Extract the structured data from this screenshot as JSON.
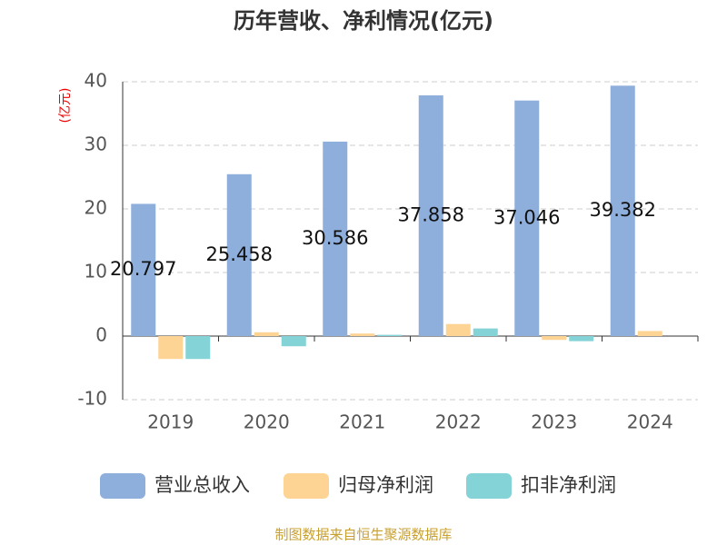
{
  "chart_data": {
    "type": "bar",
    "title": "历年营收、净利情况(亿元)",
    "y_axis_label": "(亿元)",
    "categories": [
      "2019",
      "2020",
      "2021",
      "2022",
      "2023",
      "2024"
    ],
    "series": [
      {
        "name": "营业总收入",
        "color": "#8eaedb",
        "values": [
          20.797,
          25.458,
          30.586,
          37.858,
          37.046,
          39.382
        ],
        "show_labels": true
      },
      {
        "name": "归母净利润",
        "color": "#fdd493",
        "values": [
          -3.6,
          0.6,
          0.4,
          1.9,
          -0.6,
          0.8
        ]
      },
      {
        "name": "扣非净利润",
        "color": "#84d3d6",
        "values": [
          -3.6,
          -1.6,
          0.2,
          1.2,
          -0.8,
          0
        ]
      }
    ],
    "ylim": [
      -10,
      40
    ],
    "yticks": [
      -10,
      0,
      10,
      20,
      30,
      40
    ],
    "grid": true,
    "source": "制图数据来自恒生聚源数据库"
  }
}
